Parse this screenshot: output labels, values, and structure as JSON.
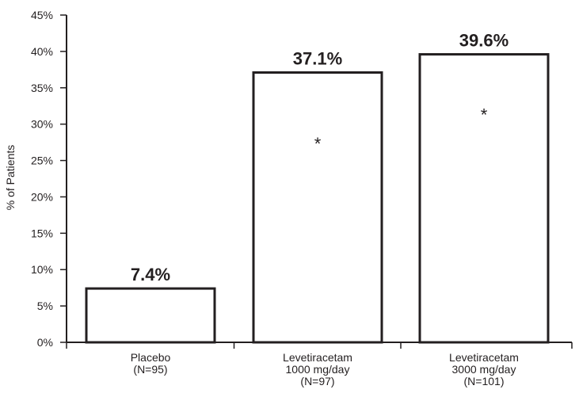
{
  "chart_data": {
    "type": "bar",
    "ylabel": "% of Patients",
    "ylim": [
      0,
      45
    ],
    "y_ticks": [
      0,
      5,
      10,
      15,
      20,
      25,
      30,
      35,
      40,
      45
    ],
    "y_tick_labels": [
      "0%",
      "5%",
      "10%",
      "15%",
      "20%",
      "25%",
      "30%",
      "35%",
      "40%",
      "45%"
    ],
    "categories": [
      {
        "lines": [
          "Placebo",
          "(N=95)"
        ]
      },
      {
        "lines": [
          "Levetiracetam",
          "1000 mg/day",
          "(N=97)"
        ]
      },
      {
        "lines": [
          "Levetiracetam",
          "3000 mg/day",
          "(N=101)"
        ]
      }
    ],
    "values": [
      7.4,
      37.1,
      39.6
    ],
    "value_labels": [
      "7.4%",
      "37.1%",
      "39.6%"
    ],
    "annotations": [
      "",
      "*",
      "*"
    ],
    "annotation_y": [
      null,
      28,
      32
    ],
    "bar_fill": "#ffffff",
    "bar_stroke": "#231f20",
    "axis_color": "#231f20",
    "grid": false
  }
}
